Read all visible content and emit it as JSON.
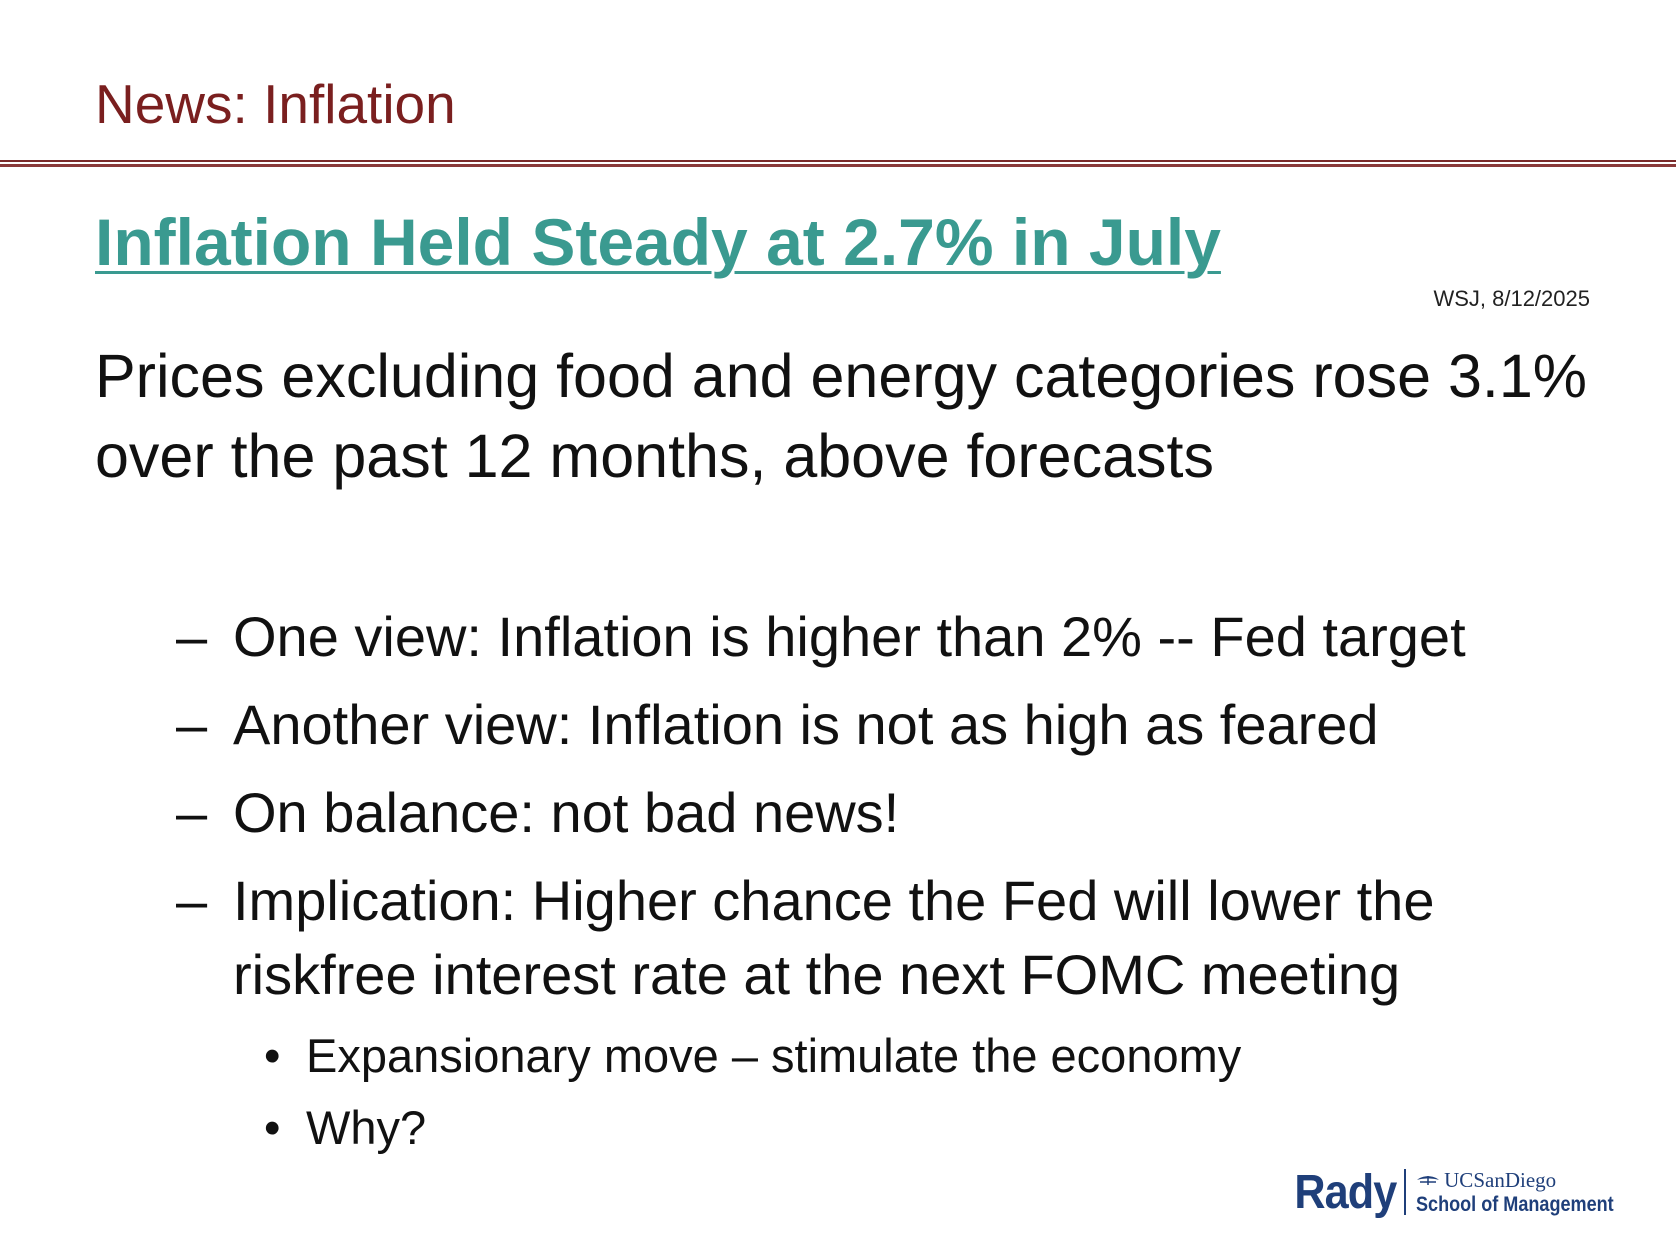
{
  "slide": {
    "title": "News: Inflation",
    "headline": "Inflation Held Steady at 2.7% in July",
    "source": "WSJ, 8/12/2025",
    "lead": "Prices excluding food and energy categories rose 3.1% over the past 12 months, above forecasts",
    "bullets": [
      {
        "marker": "–",
        "text": "One view: Inflation is higher than 2% -- Fed target"
      },
      {
        "marker": "–",
        "text": "Another view: Inflation is not as high as feared"
      },
      {
        "marker": "–",
        "text": "On balance: not bad news!"
      },
      {
        "marker": "–",
        "text": "Implication: Higher chance the Fed will lower the riskfree interest rate at the next FOMC meeting"
      }
    ],
    "sub_bullets": [
      {
        "marker": "•",
        "text": "Expansionary move – stimulate the economy"
      },
      {
        "marker": "•",
        "text": "Why?"
      }
    ]
  },
  "logo": {
    "rady": "Rady",
    "ucsd": "UCSanDiego",
    "school": "School of Management",
    "icon": "trident-icon",
    "color": "#1f3f7a"
  },
  "colors": {
    "title": "#7a1f1f",
    "headline": "#3a9a90",
    "rule": "#7a2a2a"
  }
}
